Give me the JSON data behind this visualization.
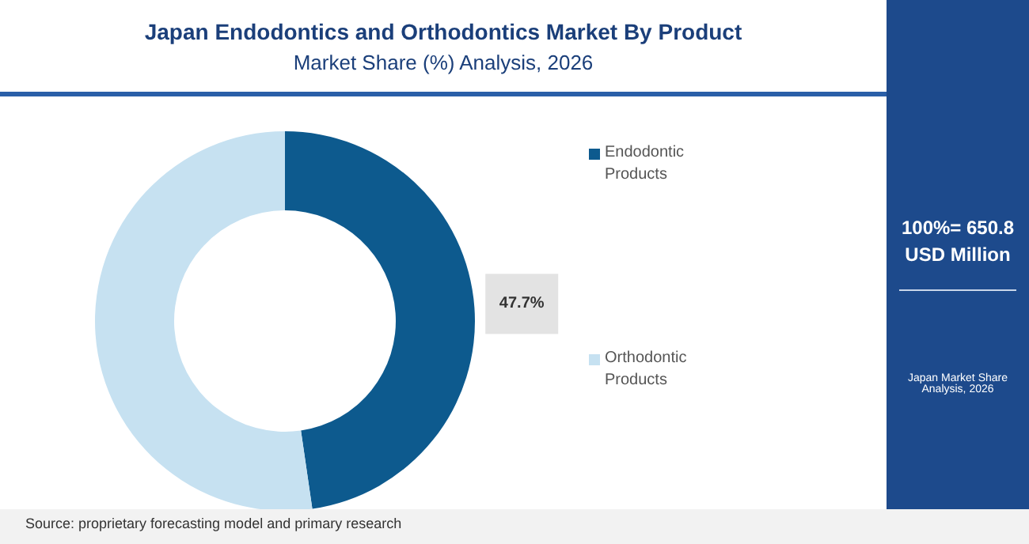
{
  "chart_data": {
    "type": "donut",
    "title": "Japan Endodontics and Orthodontics Market By Product",
    "subtitle": "Market Share (%) Analysis, 2026",
    "categories": [
      "Endodontic Products",
      "Orthodontic Products"
    ],
    "values": [
      47.7,
      52.3
    ],
    "colors": [
      "#0d5a8e",
      "#c6e1f1"
    ],
    "value_labels": [
      "47.7%",
      null
    ],
    "legend": "right",
    "annotations": [
      "100%= 650.8 USD Million",
      "Japan Market Share Analysis, 2026",
      "Source: proprietary forecasting model and primary research"
    ]
  }
}
